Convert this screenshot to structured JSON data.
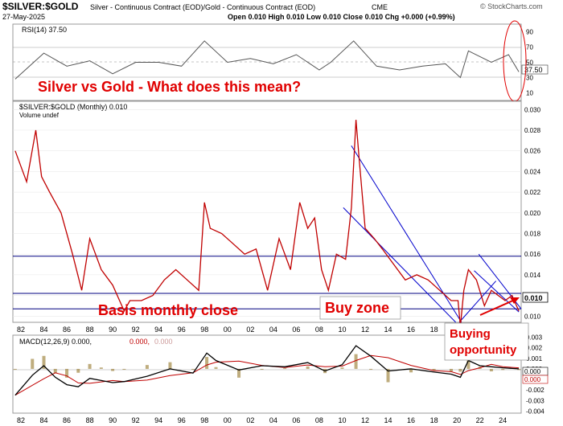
{
  "header": {
    "symbol": "$SILVER:$GOLD",
    "description": "Silver - Continuous Contract (EOD)/Gold - Continuous Contract (EOD)",
    "exchange": "CME",
    "date": "27-May-2025",
    "ohlc": "Open 0.010  High 0.010  Low 0.010  Close 0.010  Chg +0.000 (+0.99%)",
    "brand": "© StockCharts.com"
  },
  "rsi": {
    "label": "RSI(14) 37.50",
    "ticks": [
      "90",
      "70",
      "50",
      "30",
      "10"
    ],
    "last_tag": "37.50"
  },
  "price": {
    "label": "$SILVER:$GOLD (Monthly) 0.010",
    "volume_label": "Volume undef",
    "last_tag": "0.010",
    "ticks": [
      "0.030",
      "0.028",
      "0.026",
      "0.024",
      "0.022",
      "0.020",
      "0.018",
      "0.016",
      "0.014",
      "0.012",
      "0.010"
    ]
  },
  "macd": {
    "label_main": "MACD(12,26,9) 0.000,",
    "label_signal": "0.000,",
    "label_hist": "0.000",
    "ticks": [
      "0.003",
      "0.002",
      "0.001",
      "0.000",
      "-0.001",
      "-0.002",
      "-0.003",
      "-0.004"
    ],
    "last_tag_a": "0.000",
    "last_tag_b": "0.000"
  },
  "x_labels_top": [
    "82",
    "84",
    "86",
    "88",
    "90",
    "92",
    "94",
    "96",
    "98",
    "00",
    "02",
    "04",
    "06",
    "08",
    "10",
    "12",
    "14",
    "16",
    "18",
    "20",
    "22",
    "24"
  ],
  "x_labels_bottom": [
    "82",
    "84",
    "86",
    "88",
    "90",
    "92",
    "94",
    "96",
    "98",
    "00",
    "02",
    "04",
    "06",
    "08",
    "10",
    "12",
    "14",
    "16",
    "18",
    "20",
    "22",
    "24"
  ],
  "annotations": {
    "title": "Silver vs Gold  -  What does this mean?",
    "basis": "Basis monthly close",
    "buy_zone": "Buy zone",
    "buying_opportunity": "Buying\nopportunity"
  },
  "colors": {
    "price": "#c00000",
    "rsi_line": "#555555",
    "macd": "#000000",
    "signal": "#c00000",
    "hist": "#8b6914",
    "channel": "#0000cc",
    "hline": "#000080",
    "annotation": "#e00000"
  },
  "chart_data": {
    "type": "line",
    "title": "$SILVER:$GOLD (Monthly)",
    "x": [
      1981.5,
      1982.5,
      1983.3,
      1983.8,
      1984.5,
      1985.5,
      1986.5,
      1987.3,
      1988,
      1989,
      1990,
      1991,
      1991.5,
      1992.5,
      1993.5,
      1994.5,
      1995.5,
      1996.5,
      1997.5,
      1998,
      1998.5,
      1999.5,
      2000.5,
      2001.5,
      2002.5,
      2003.5,
      2004.5,
      2005.5,
      2006.3,
      2007,
      2007.6,
      2008.2,
      2008.8,
      2009.5,
      2010.3,
      2010.8,
      2011.2,
      2011.5,
      2012,
      2012.8,
      2013.5,
      2014.5,
      2015.5,
      2016.5,
      2017.5,
      2018.5,
      2019.5,
      2020.1,
      2020.3,
      2020.6,
      2021,
      2021.7,
      2022.4,
      2023,
      2023.6,
      2024.2,
      2024.8,
      2025.4
    ],
    "y": [
      0.026,
      0.023,
      0.028,
      0.0235,
      0.022,
      0.02,
      0.016,
      0.0125,
      0.0175,
      0.0145,
      0.013,
      0.0105,
      0.0115,
      0.0115,
      0.012,
      0.0135,
      0.0145,
      0.0135,
      0.0125,
      0.021,
      0.0185,
      0.018,
      0.017,
      0.016,
      0.0165,
      0.0125,
      0.0175,
      0.0145,
      0.021,
      0.0185,
      0.0195,
      0.0145,
      0.0125,
      0.016,
      0.0155,
      0.0205,
      0.029,
      0.025,
      0.0185,
      0.0175,
      0.0165,
      0.015,
      0.0135,
      0.014,
      0.0135,
      0.0125,
      0.0115,
      0.0115,
      0.009,
      0.0125,
      0.0145,
      0.0135,
      0.011,
      0.0125,
      0.012,
      0.0115,
      0.012,
      0.0105
    ],
    "xlim": [
      1981.3,
      2025.6
    ],
    "ylim": [
      0.0094,
      0.0308
    ],
    "hlines": [
      0.0158,
      0.0122,
      0.0107
    ],
    "rsi": {
      "x": [
        1981.5,
        1984,
        1986,
        1988,
        1990,
        1992,
        1994,
        1996,
        1998,
        2000,
        2002,
        2004,
        2006,
        2008,
        2009,
        2011,
        2013,
        2015,
        2017,
        2019,
        2020.3,
        2021,
        2023,
        2024.5,
        2025.4
      ],
      "y": [
        28,
        62,
        45,
        52,
        35,
        50,
        50,
        45,
        78,
        50,
        55,
        48,
        60,
        40,
        50,
        78,
        45,
        40,
        45,
        48,
        30,
        65,
        50,
        60,
        37.5
      ],
      "ylim": [
        0,
        100
      ]
    },
    "macd": {
      "x": [
        1981.5,
        1983,
        1984,
        1985,
        1986,
        1987,
        1988,
        1989,
        1990,
        1991,
        1993,
        1995,
        1997,
        1998.2,
        1999,
        2001,
        2003,
        2005,
        2007,
        2008.5,
        2010,
        2011.2,
        2012.5,
        2014,
        2016,
        2018,
        2019.5,
        2020.3,
        2021,
        2022,
        2023,
        2024,
        2025.4
      ],
      "y": [
        -0.0025,
        -0.0006,
        0.0003,
        -0.0008,
        -0.0015,
        -0.0017,
        -0.0009,
        -0.0011,
        -0.0013,
        -0.0012,
        -0.0007,
        0.0,
        -0.0004,
        0.0015,
        0.0008,
        -0.0001,
        0.0003,
        0.0002,
        0.0006,
        -0.0002,
        0.0004,
        0.0022,
        0.0012,
        -0.0002,
        0.0,
        -0.0003,
        -0.0005,
        -0.0008,
        0.0008,
        0.0003,
        0.0002,
        0.0001,
        0.0
      ],
      "ylim": [
        -0.0042,
        0.0032
      ]
    }
  }
}
